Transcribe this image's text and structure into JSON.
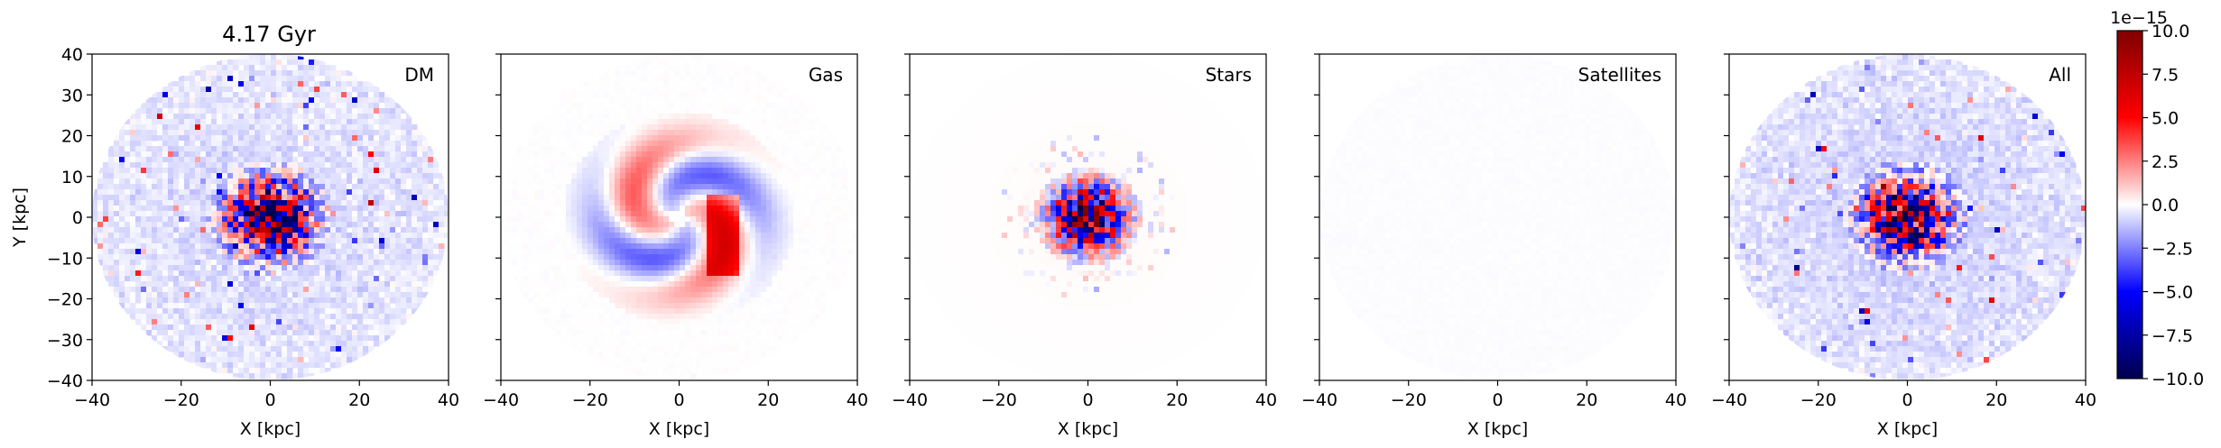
{
  "figure": {
    "title": "4.17 Gyr"
  },
  "chart_data": [
    {
      "type": "heatmap",
      "panel_label": "DM",
      "xlabel": "X [kpc]",
      "ylabel": "Y [kpc]",
      "xlim": [
        -40,
        40
      ],
      "ylim": [
        -40,
        40
      ],
      "xticks": [
        "−40",
        "−20",
        "0",
        "20",
        "40"
      ],
      "yticks": [
        "40",
        "30",
        "20",
        "10",
        "0",
        "−10",
        "−20",
        "−30",
        "−40"
      ],
      "extent_radius": 40,
      "central_amplitude": 10.0,
      "background_level": -1.0,
      "noise_amplitude": 2.0
    },
    {
      "type": "heatmap",
      "panel_label": "Gas",
      "xlabel": "X [kpc]",
      "xlim": [
        -40,
        40
      ],
      "ylim": [
        -40,
        40
      ],
      "xticks": [
        "−40",
        "−20",
        "0",
        "20",
        "40"
      ],
      "extent_radius": 40,
      "structure": "spiral"
    },
    {
      "type": "heatmap",
      "panel_label": "Stars",
      "xlabel": "X [kpc]",
      "xlim": [
        -40,
        40
      ],
      "ylim": [
        -40,
        40
      ],
      "xticks": [
        "−40",
        "−20",
        "0",
        "20",
        "40"
      ],
      "extent_radius": 40,
      "central_amplitude": 10.0,
      "core_radius": 12
    },
    {
      "type": "heatmap",
      "panel_label": "Satellites",
      "xlabel": "X [kpc]",
      "xlim": [
        -40,
        40
      ],
      "ylim": [
        -40,
        40
      ],
      "xticks": [
        "−40",
        "−20",
        "0",
        "20",
        "40"
      ],
      "extent_radius": 40,
      "near_zero": true
    },
    {
      "type": "heatmap",
      "panel_label": "All",
      "xlabel": "X [kpc]",
      "xlim": [
        -40,
        40
      ],
      "ylim": [
        -40,
        40
      ],
      "xticks": [
        "−40",
        "−20",
        "0",
        "20",
        "40"
      ],
      "extent_radius": 40,
      "central_amplitude": 10.0,
      "background_level": -1.2,
      "noise_amplitude": 2.2
    }
  ],
  "colorbar": {
    "colormap": "seismic",
    "vmin": -10.0,
    "vmax": 10.0,
    "offset_label": "1e−15",
    "ticks": [
      {
        "value": 10.0,
        "label": "10.0"
      },
      {
        "value": 7.5,
        "label": "7.5"
      },
      {
        "value": 5.0,
        "label": "5.0"
      },
      {
        "value": 2.5,
        "label": "2.5"
      },
      {
        "value": 0.0,
        "label": "0.0"
      },
      {
        "value": -2.5,
        "label": "−2.5"
      },
      {
        "value": -5.0,
        "label": "−5.0"
      },
      {
        "value": -7.5,
        "label": "−7.5"
      },
      {
        "value": -10.0,
        "label": "−10.0"
      }
    ],
    "colors": {
      "low": "#00004c",
      "mid": "#ffffff",
      "high": "#800000"
    }
  }
}
